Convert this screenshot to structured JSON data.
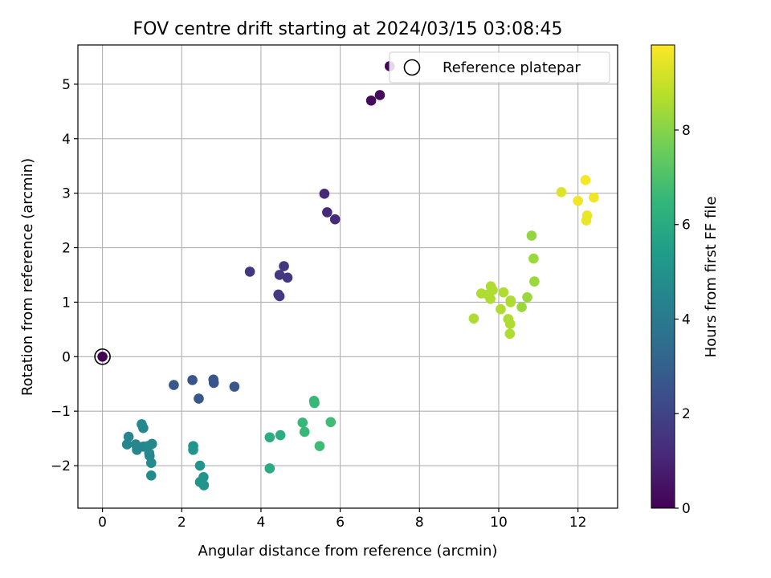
{
  "chart_data": {
    "type": "scatter",
    "title": "FOV centre drift starting at 2024/03/15 03:08:45",
    "xlabel": "Angular distance from reference (arcmin)",
    "ylabel": "Rotation from reference (arcmin)",
    "xlim": [
      -0.62,
      13.0
    ],
    "ylim": [
      -2.78,
      5.72
    ],
    "xticks": [
      0,
      2,
      4,
      6,
      8,
      10,
      12
    ],
    "yticks": [
      -2,
      -1,
      0,
      1,
      2,
      3,
      4,
      5
    ],
    "grid": true,
    "legend": {
      "placement": "top-right",
      "entries": [
        "Reference platepar"
      ]
    },
    "colorbar": {
      "label": "Hours from first FF file",
      "range": [
        0,
        9.8
      ],
      "ticks": [
        0,
        2,
        4,
        6,
        8
      ],
      "colormap": "viridis",
      "stops": [
        "#440154",
        "#482878",
        "#3e4989",
        "#31688e",
        "#26828e",
        "#1f9e89",
        "#35b779",
        "#6ece58",
        "#b5de2b",
        "#fde725"
      ]
    },
    "reference": {
      "x": 0,
      "y": 0
    },
    "points": [
      {
        "x": 0.0,
        "y": 0.0,
        "h": 0.0
      },
      {
        "x": 7.25,
        "y": 5.33,
        "h": 0.1
      },
      {
        "x": 6.78,
        "y": 4.7,
        "h": 0.25
      },
      {
        "x": 7.0,
        "y": 4.8,
        "h": 0.3
      },
      {
        "x": 5.6,
        "y": 2.99,
        "h": 1.1
      },
      {
        "x": 5.67,
        "y": 2.65,
        "h": 1.15
      },
      {
        "x": 5.87,
        "y": 2.52,
        "h": 1.2
      },
      {
        "x": 3.72,
        "y": 1.56,
        "h": 1.6
      },
      {
        "x": 4.58,
        "y": 1.66,
        "h": 1.6
      },
      {
        "x": 4.47,
        "y": 1.5,
        "h": 1.65
      },
      {
        "x": 4.67,
        "y": 1.45,
        "h": 1.6
      },
      {
        "x": 4.44,
        "y": 1.14,
        "h": 1.7
      },
      {
        "x": 4.47,
        "y": 1.11,
        "h": 1.7
      },
      {
        "x": 1.8,
        "y": -0.52,
        "h": 2.7
      },
      {
        "x": 2.27,
        "y": -0.43,
        "h": 2.6
      },
      {
        "x": 2.43,
        "y": -0.77,
        "h": 2.7
      },
      {
        "x": 2.8,
        "y": -0.42,
        "h": 2.6
      },
      {
        "x": 2.81,
        "y": -0.48,
        "h": 2.6
      },
      {
        "x": 3.33,
        "y": -0.55,
        "h": 2.7
      },
      {
        "x": 0.99,
        "y": -1.24,
        "h": 4.6
      },
      {
        "x": 1.03,
        "y": -1.31,
        "h": 4.6
      },
      {
        "x": 0.66,
        "y": -1.47,
        "h": 4.5
      },
      {
        "x": 0.62,
        "y": -1.61,
        "h": 4.5
      },
      {
        "x": 0.84,
        "y": -1.61,
        "h": 4.5
      },
      {
        "x": 0.87,
        "y": -1.71,
        "h": 4.5
      },
      {
        "x": 1.03,
        "y": -1.65,
        "h": 4.5
      },
      {
        "x": 1.14,
        "y": -1.64,
        "h": 4.6
      },
      {
        "x": 1.25,
        "y": -1.6,
        "h": 4.6
      },
      {
        "x": 1.18,
        "y": -1.77,
        "h": 4.6
      },
      {
        "x": 1.19,
        "y": -1.82,
        "h": 4.6
      },
      {
        "x": 1.23,
        "y": -1.95,
        "h": 4.7
      },
      {
        "x": 1.23,
        "y": -2.18,
        "h": 4.7
      },
      {
        "x": 2.29,
        "y": -1.64,
        "h": 5.1
      },
      {
        "x": 2.29,
        "y": -1.71,
        "h": 5.1
      },
      {
        "x": 2.46,
        "y": -2.0,
        "h": 5.1
      },
      {
        "x": 2.55,
        "y": -2.21,
        "h": 5.1
      },
      {
        "x": 2.46,
        "y": -2.3,
        "h": 5.1
      },
      {
        "x": 2.56,
        "y": -2.36,
        "h": 5.1
      },
      {
        "x": 4.22,
        "y": -1.48,
        "h": 6.1
      },
      {
        "x": 4.49,
        "y": -1.44,
        "h": 6.1
      },
      {
        "x": 4.22,
        "y": -2.05,
        "h": 6.0
      },
      {
        "x": 5.34,
        "y": -0.81,
        "h": 6.6
      },
      {
        "x": 5.35,
        "y": -0.85,
        "h": 6.6
      },
      {
        "x": 5.05,
        "y": -1.21,
        "h": 6.6
      },
      {
        "x": 5.1,
        "y": -1.38,
        "h": 6.6
      },
      {
        "x": 5.76,
        "y": -1.2,
        "h": 6.7
      },
      {
        "x": 5.48,
        "y": -1.64,
        "h": 6.7
      },
      {
        "x": 10.83,
        "y": 2.22,
        "h": 8.2
      },
      {
        "x": 10.88,
        "y": 1.8,
        "h": 8.3
      },
      {
        "x": 10.9,
        "y": 1.38,
        "h": 8.3
      },
      {
        "x": 10.72,
        "y": 1.09,
        "h": 8.3
      },
      {
        "x": 10.58,
        "y": 0.91,
        "h": 8.3
      },
      {
        "x": 9.56,
        "y": 1.16,
        "h": 8.6
      },
      {
        "x": 9.72,
        "y": 1.14,
        "h": 8.6
      },
      {
        "x": 9.8,
        "y": 1.29,
        "h": 8.6
      },
      {
        "x": 9.85,
        "y": 1.22,
        "h": 8.6
      },
      {
        "x": 9.79,
        "y": 1.06,
        "h": 8.6
      },
      {
        "x": 10.12,
        "y": 1.18,
        "h": 8.6
      },
      {
        "x": 10.3,
        "y": 1.03,
        "h": 8.6
      },
      {
        "x": 10.3,
        "y": 1.0,
        "h": 8.6
      },
      {
        "x": 10.05,
        "y": 0.87,
        "h": 8.6
      },
      {
        "x": 9.37,
        "y": 0.7,
        "h": 8.6
      },
      {
        "x": 10.24,
        "y": 0.69,
        "h": 8.6
      },
      {
        "x": 10.29,
        "y": 0.6,
        "h": 8.6
      },
      {
        "x": 10.28,
        "y": 0.42,
        "h": 8.6
      },
      {
        "x": 11.58,
        "y": 3.02,
        "h": 9.3
      },
      {
        "x": 12.19,
        "y": 3.24,
        "h": 9.7
      },
      {
        "x": 12.0,
        "y": 2.86,
        "h": 9.6
      },
      {
        "x": 12.4,
        "y": 2.92,
        "h": 9.6
      },
      {
        "x": 12.23,
        "y": 2.59,
        "h": 9.5
      },
      {
        "x": 12.21,
        "y": 2.5,
        "h": 9.5
      }
    ]
  }
}
